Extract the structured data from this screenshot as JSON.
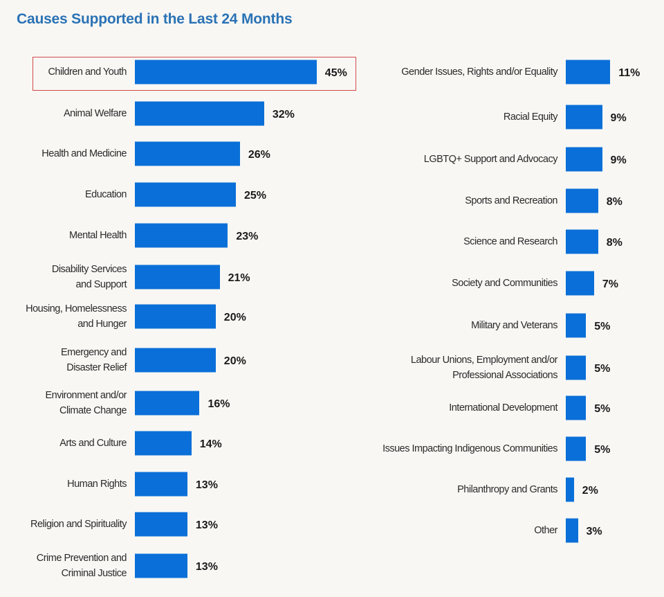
{
  "chart_data": [
    {
      "type": "bar",
      "orientation": "horizontal",
      "title": "Causes Supported in the Last 24 Months",
      "bar_color": "#0a6fd8",
      "highlight_color": "#d24a4a",
      "highlighted_category": "Children and Youth",
      "unit": "%",
      "categories": [
        "Children and Youth",
        "Animal Welfare",
        "Health and Medicine",
        "Education",
        "Mental Health",
        "Disability Services\nand Support",
        "Housing, Homelessness\nand Hunger",
        "Emergency and\nDisaster Relief",
        "Environment and/or\nClimate Change",
        "Arts and Culture",
        "Human Rights",
        "Religion and Spirituality",
        "Crime Prevention and\nCriminal Justice"
      ],
      "values": [
        45,
        32,
        26,
        25,
        23,
        21,
        20,
        20,
        16,
        14,
        13,
        13,
        13
      ]
    },
    {
      "type": "bar",
      "orientation": "horizontal",
      "bar_color": "#0a6fd8",
      "unit": "%",
      "categories": [
        "Gender Issues, Rights and/or Equality",
        "Racial Equity",
        "LGBTQ+ Support and Advocacy",
        "Sports and Recreation",
        "Science and Research",
        "Society and Communities",
        "Military and Veterans",
        "Labour Unions, Employment and/or\nProfessional Associations",
        "International Development",
        "Issues Impacting Indigenous Communities",
        "Philanthropy and Grants",
        "Other"
      ],
      "values": [
        11,
        9,
        9,
        8,
        8,
        7,
        5,
        5,
        5,
        5,
        2,
        3
      ]
    }
  ]
}
